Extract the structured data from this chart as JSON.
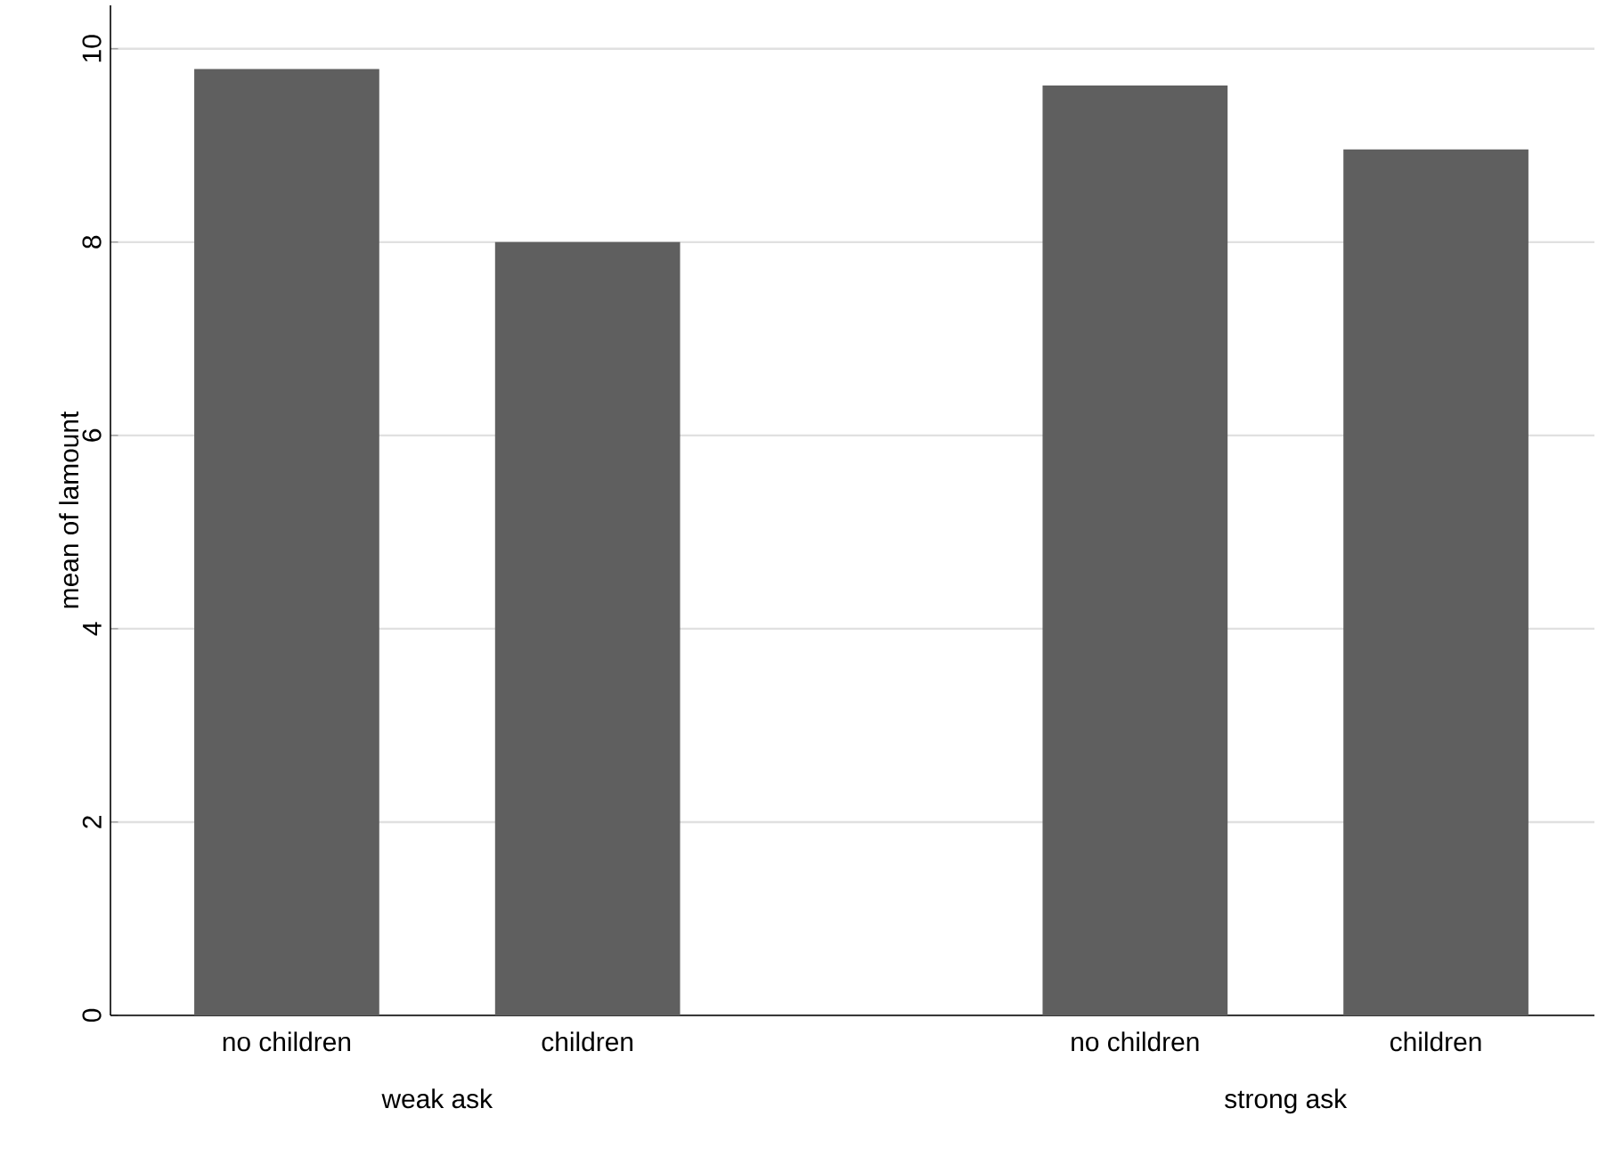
{
  "chart_data": {
    "type": "bar",
    "ylabel": "mean of lamount",
    "categories": [
      "no children",
      "children",
      "no children",
      "children"
    ],
    "values": [
      9.79,
      8.0,
      9.62,
      8.96
    ],
    "color": "#5f5f5f",
    "ylim": [
      0,
      10.45
    ],
    "yticks": [
      0,
      2,
      4,
      6,
      8,
      10
    ],
    "grid": "y",
    "annotations": [
      "weak ask",
      "strong ask"
    ]
  }
}
